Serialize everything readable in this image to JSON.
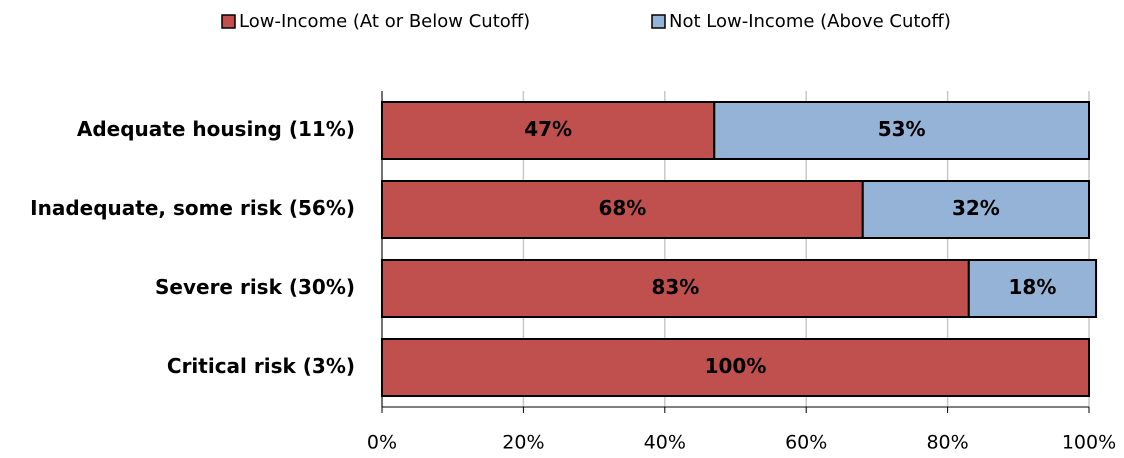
{
  "chart_data": {
    "type": "stacked-barh",
    "categories": [
      "Adequate housing (11%)",
      "Inadequate, some risk (56%)",
      "Severe risk (30%)",
      "Critical risk (3%)"
    ],
    "series": [
      {
        "name": "Low-Income (At or Below Cutoff)",
        "color": "#c0504d",
        "values": [
          47,
          68,
          83,
          100
        ],
        "value_labels": [
          "47%",
          "68%",
          "83%",
          "100%"
        ]
      },
      {
        "name": "Not Low-Income (Above Cutoff)",
        "color": "#95b3d7",
        "values": [
          53,
          32,
          18,
          null
        ],
        "value_labels": [
          "53%",
          "32%",
          "18%",
          null
        ]
      }
    ],
    "xlim": [
      0,
      100
    ],
    "xticks": [
      {
        "value": 0,
        "label": "0%"
      },
      {
        "value": 20,
        "label": "20%"
      },
      {
        "value": 40,
        "label": "40%"
      },
      {
        "value": 60,
        "label": "60%"
      },
      {
        "value": 80,
        "label": "80%"
      },
      {
        "value": 100,
        "label": "100%"
      }
    ],
    "grid": true,
    "legend": "top"
  }
}
